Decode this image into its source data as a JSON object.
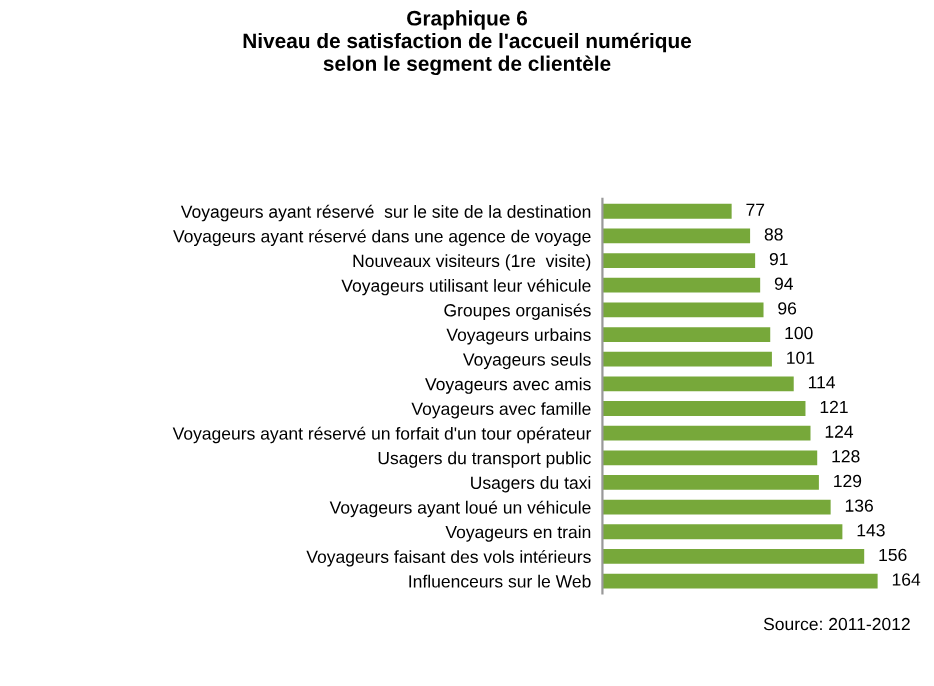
{
  "chart_data": {
    "type": "bar",
    "orientation": "horizontal",
    "title": "Graphique 6\nNiveau de satisfaction de l'accueil numérique\nselon le segment de clientèle",
    "categories": [
      "Voyageurs ayant réservé  sur le site de la destination",
      "Voyageurs ayant réservé dans une agence de voyage",
      "Nouveaux visiteurs (1re  visite)",
      "Voyageurs utilisant leur véhicule",
      "Groupes organisés",
      "Voyageurs urbains",
      "Voyageurs seuls",
      "Voyageurs avec amis",
      "Voyageurs avec famille",
      "Voyageurs ayant réservé un forfait d'un tour opérateur",
      "Usagers du transport public",
      "Usagers du taxi",
      "Voyageurs ayant loué un véhicule",
      "Voyageurs en train",
      "Voyageurs faisant des vols intérieurs",
      "Influenceurs sur le Web"
    ],
    "values": [
      77,
      88,
      91,
      94,
      96,
      100,
      101,
      114,
      121,
      124,
      128,
      129,
      136,
      143,
      156,
      164
    ],
    "color": "#77a83a",
    "data_labels": true,
    "grid": false,
    "legend": false,
    "annotations": [
      "Source: 2011-2012"
    ]
  }
}
